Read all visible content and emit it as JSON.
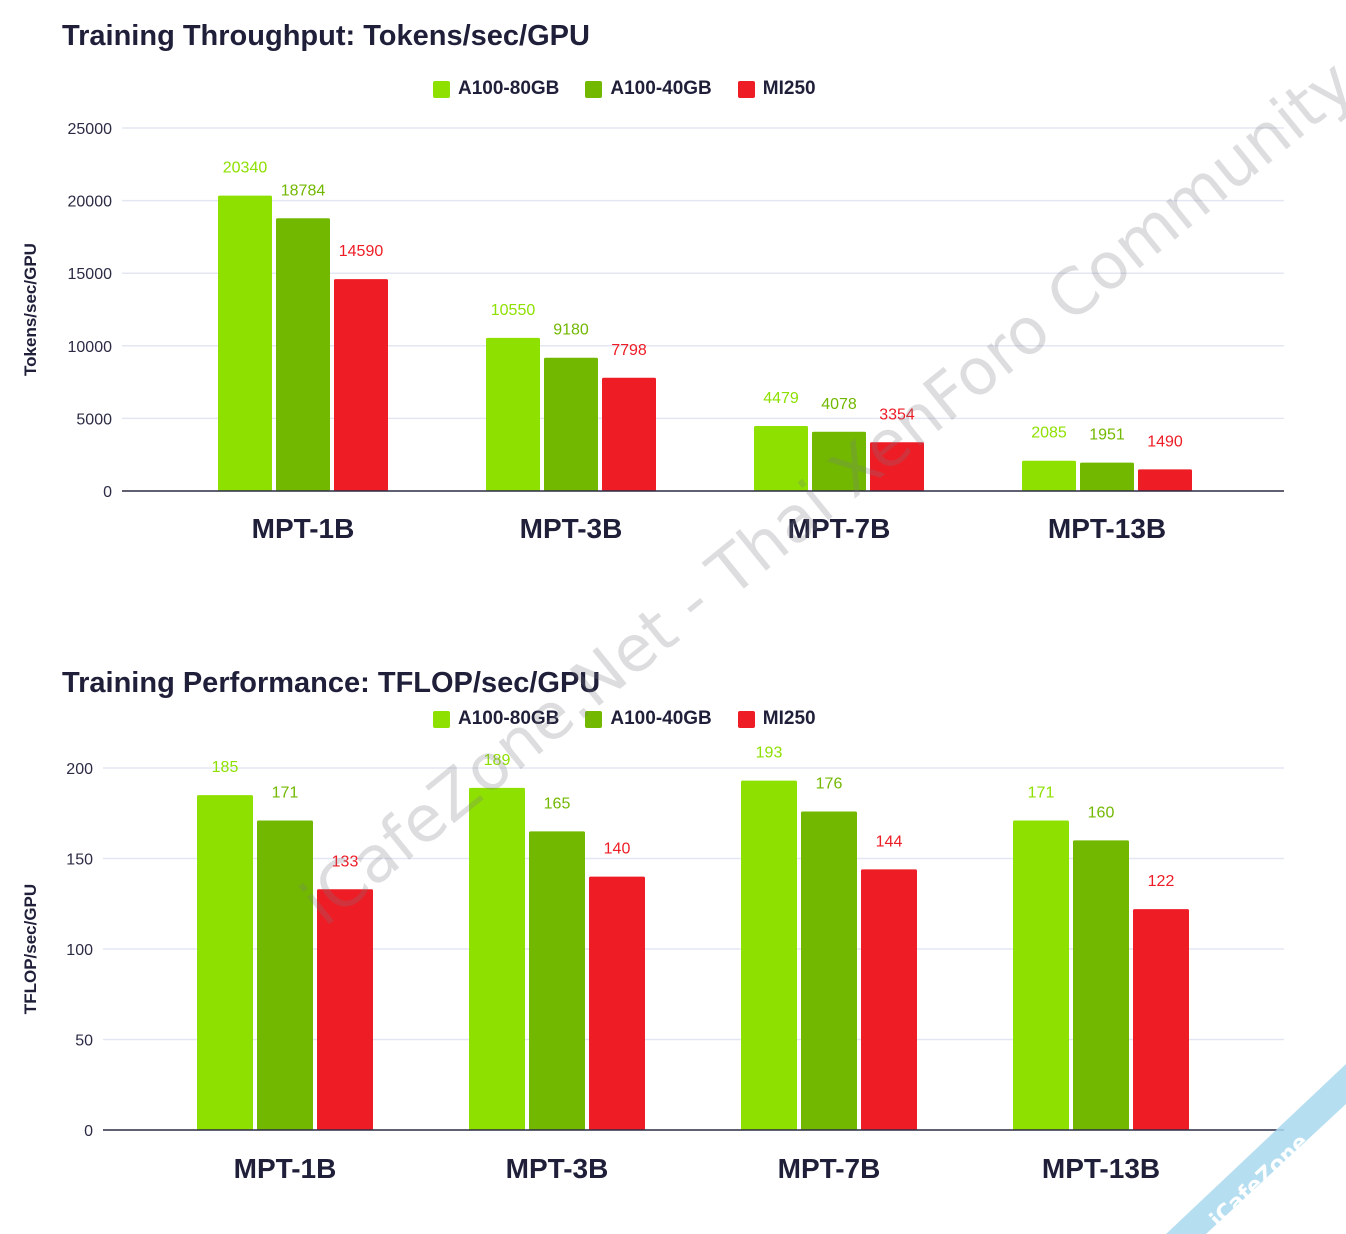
{
  "colors": {
    "A100-80GB": "#8ee000",
    "A100-40GB": "#72b800",
    "MI250": "#ee1c25",
    "grid": "#e3e7f2",
    "axis": "#2b2b45"
  },
  "watermark": "iCafeZone.Net - Thai XenForo Community",
  "corner_badge": "iCafeZone",
  "chart_data": [
    {
      "type": "bar",
      "title": "Training Throughput: Tokens/sec/GPU",
      "ylabel": "Tokens/sec/GPU",
      "xlabel": "",
      "categories": [
        "MPT-1B",
        "MPT-3B",
        "MPT-7B",
        "MPT-13B"
      ],
      "series": [
        {
          "name": "A100-80GB",
          "values": [
            20340,
            10550,
            4479,
            2085
          ]
        },
        {
          "name": "A100-40GB",
          "values": [
            18784,
            9180,
            4078,
            1951
          ]
        },
        {
          "name": "MI250",
          "values": [
            14590,
            7798,
            3354,
            1490
          ]
        }
      ],
      "ylim": [
        0,
        25000
      ],
      "yticks": [
        0,
        5000,
        10000,
        15000,
        20000,
        25000
      ],
      "grid": true,
      "legend": "top-center"
    },
    {
      "type": "bar",
      "title": "Training Performance: TFLOP/sec/GPU",
      "ylabel": "TFLOP/sec/GPU",
      "xlabel": "",
      "categories": [
        "MPT-1B",
        "MPT-3B",
        "MPT-7B",
        "MPT-13B"
      ],
      "series": [
        {
          "name": "A100-80GB",
          "values": [
            185,
            189,
            193,
            171
          ]
        },
        {
          "name": "A100-40GB",
          "values": [
            171,
            165,
            176,
            160
          ]
        },
        {
          "name": "MI250",
          "values": [
            133,
            140,
            144,
            122
          ]
        }
      ],
      "ylim": [
        0,
        200
      ],
      "yticks": [
        0,
        50,
        100,
        150,
        200
      ],
      "grid": true,
      "legend": "top-center"
    }
  ]
}
